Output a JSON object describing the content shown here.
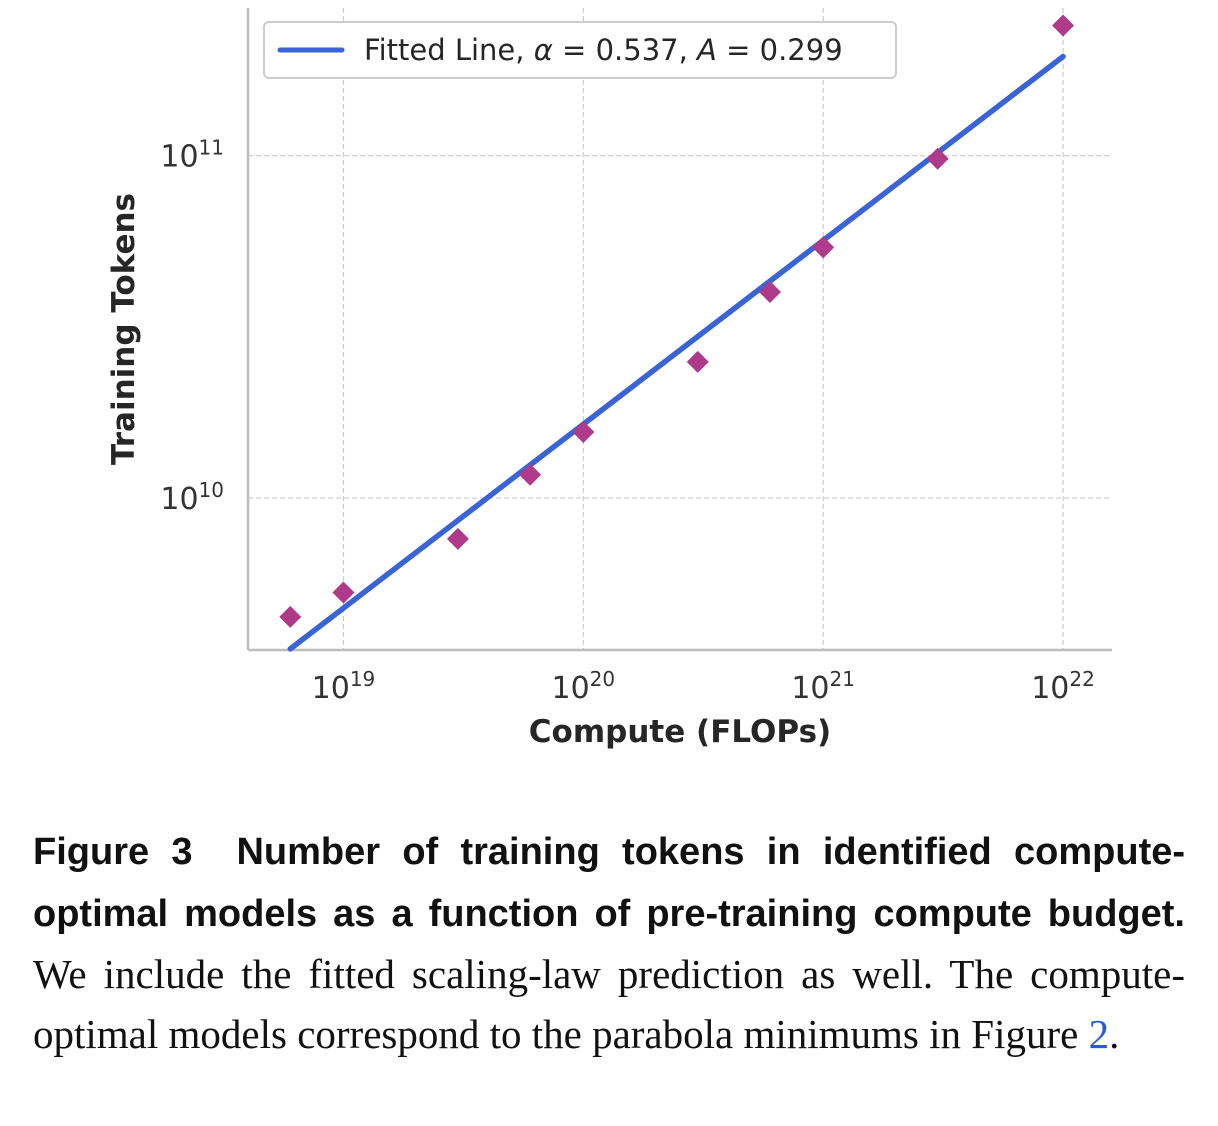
{
  "chart_data": {
    "type": "scatter",
    "xlabel": "Compute (FLOPs)",
    "ylabel": "Training Tokens",
    "xscale": "log",
    "yscale": "log",
    "xlim": [
      4e+18,
      1.6e+22
    ],
    "ylim": [
      3600000000.0,
      270000000000.0
    ],
    "grid": true,
    "x_ticks": [
      {
        "value": 1e+19,
        "base": "10",
        "exp": "19"
      },
      {
        "value": 1e+20,
        "base": "10",
        "exp": "20"
      },
      {
        "value": 1e+21,
        "base": "10",
        "exp": "21"
      },
      {
        "value": 1e+22,
        "base": "10",
        "exp": "22"
      }
    ],
    "y_ticks": [
      {
        "value": 10000000000.0,
        "base": "10",
        "exp": "10"
      },
      {
        "value": 100000000000.0,
        "base": "10",
        "exp": "11"
      }
    ],
    "legend": {
      "position": "top-left",
      "prefix": "Fitted Line, ",
      "alpha_symbol": "α",
      "alpha_eq": " = 0.537, ",
      "a_symbol": "A",
      "a_eq": " = 0.299"
    },
    "fit_line": {
      "name": "Fitted Line",
      "alpha": 0.537,
      "A": 0.299,
      "x_range": [
        6e+18,
        1e+22
      ],
      "color": "#3a63d6"
    },
    "points": {
      "color": "#b03a8a",
      "marker": "diamond",
      "x": [
        6e+18,
        1e+19,
        3e+19,
        6e+19,
        1e+20,
        3e+20,
        6e+20,
        1e+21,
        3e+21,
        1e+22
      ],
      "y": [
        4500000000.0,
        5300000000.0,
        7600000000.0,
        11700000000.0,
        15600000000.0,
        25000000000.0,
        40000000000.0,
        54000000000.0,
        98000000000.0,
        240000000000.0
      ]
    }
  },
  "caption": {
    "figure_label": "Figure 3",
    "bold_text": "Number of training tokens in identified compute-optimal models as a function of pre-training compute budget.",
    "body_text": "We include the fitted scaling-law prediction as well. The compute-optimal models correspond to the parabola minimums in Figure ",
    "ref_text": "2",
    "end_text": "."
  }
}
